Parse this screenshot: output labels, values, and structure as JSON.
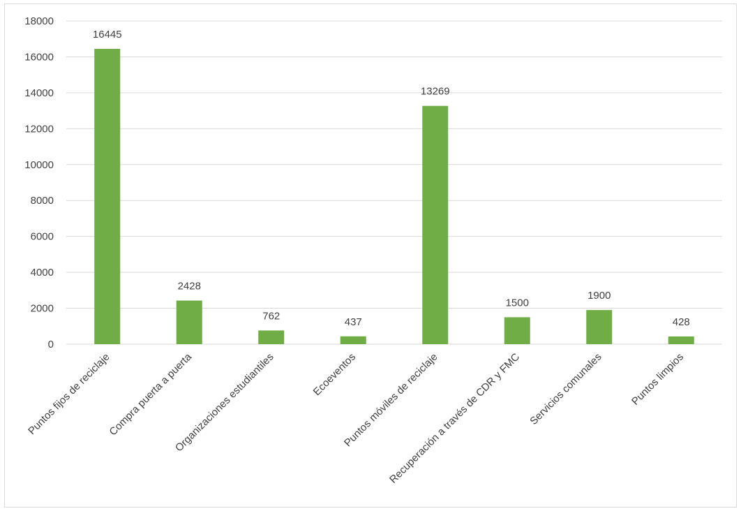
{
  "chart_data": {
    "type": "bar",
    "title": "",
    "xlabel": "",
    "ylabel": "",
    "categories": [
      "Puntos fijos de reciclaje",
      "Compra puerta a puerta",
      "Organizaciones estudiantiles",
      "Ecoeventos",
      "Puntos móviles de reciclaje",
      "Recuperación a través de CDR y FMC",
      "Servicios comunales",
      "Puntos limpios"
    ],
    "values": [
      16445,
      2428,
      762,
      437,
      13269,
      1500,
      1900,
      428
    ],
    "ylim": [
      0,
      18000
    ],
    "yticks": [
      0,
      2000,
      4000,
      6000,
      8000,
      10000,
      12000,
      14000,
      16000,
      18000
    ],
    "grid": true,
    "legend": "none",
    "colors": {
      "bar": "#70ad47",
      "grid": "#d9d9d9",
      "axis": "#d9d9d9",
      "text": "#404040"
    }
  }
}
